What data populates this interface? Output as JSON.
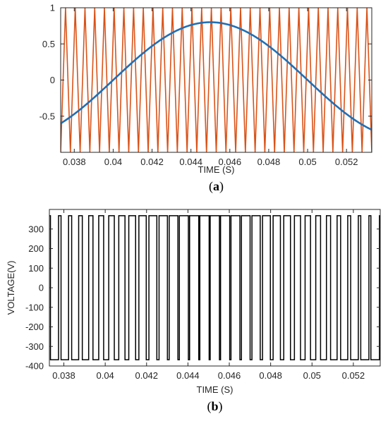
{
  "chart_data": [
    {
      "type": "line",
      "panel_label_open": "(",
      "panel_letter": "a",
      "panel_label_close": ")",
      "xlabel": "TIME (S)",
      "ylabel": "",
      "xlim": [
        0.0373,
        0.0533
      ],
      "ylim": [
        -1,
        1
      ],
      "xticks": [
        0.038,
        0.04,
        0.042,
        0.044,
        0.046,
        0.048,
        0.05,
        0.052
      ],
      "xtick_labels": [
        "0.038",
        "0.04",
        "0.042",
        "0.044",
        "0.046",
        "0.048",
        "0.05",
        "0.052"
      ],
      "yticks": [
        1,
        0.5,
        0,
        -0.5
      ],
      "ytick_labels": [
        "1",
        "0.5",
        "0",
        "-0.5"
      ],
      "grid": false,
      "series": [
        {
          "kind": "triangle-carrier",
          "color": "#d95319",
          "min": -1,
          "max": 1,
          "period": 0.0005,
          "phase_peak_at": 0.03755
        },
        {
          "kind": "sine-reference",
          "color": "#1f6fb5",
          "amplitude": 0.8,
          "frequency_hz": 50,
          "peak_at": 0.045,
          "x": [
            0.0373,
            0.039,
            0.041,
            0.043,
            0.045,
            0.047,
            0.049,
            0.051,
            0.0533
          ],
          "values": [
            -0.59,
            -0.47,
            -0.0,
            0.47,
            0.8,
            0.65,
            0.25,
            -0.25,
            -0.67
          ]
        }
      ]
    },
    {
      "type": "line",
      "panel_label_open": "(",
      "panel_letter": "b",
      "panel_label_close": ")",
      "xlabel": "TIME (S)",
      "ylabel": "VOLTAGE(V)",
      "xlim": [
        0.0373,
        0.0533
      ],
      "ylim": [
        -400,
        400
      ],
      "xticks": [
        0.038,
        0.04,
        0.042,
        0.044,
        0.046,
        0.048,
        0.05,
        0.052
      ],
      "xtick_labels": [
        "0.038",
        "0.04",
        "0.042",
        "0.044",
        "0.046",
        "0.048",
        "0.05",
        "0.052"
      ],
      "yticks": [
        300,
        200,
        100,
        0,
        -100,
        -200,
        -300,
        -400
      ],
      "ytick_labels": [
        "300",
        "200",
        "100",
        "0",
        "-100",
        "-200",
        "-300",
        "-400"
      ],
      "grid": false,
      "series": [
        {
          "kind": "pwm-bipolar",
          "color": "#000000",
          "high": 368,
          "low": -368,
          "carrier_period": 0.0005,
          "modulation_amplitude": 0.8,
          "frequency_hz": 50,
          "peak_at": 0.045
        }
      ]
    }
  ]
}
